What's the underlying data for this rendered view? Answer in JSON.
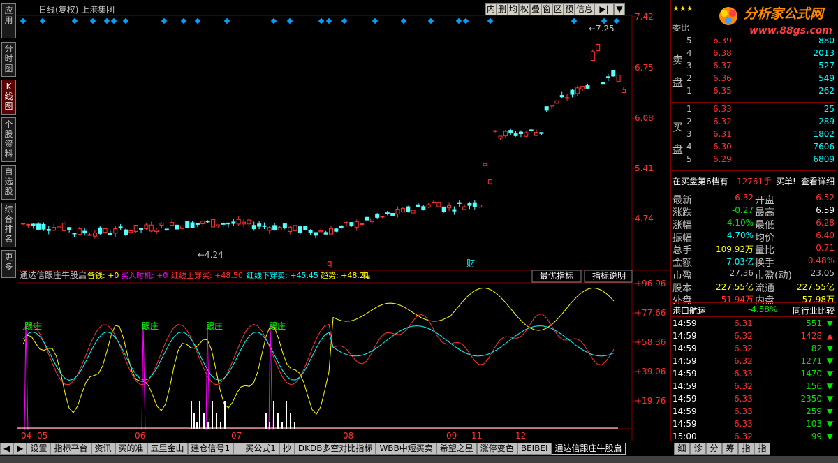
{
  "left_tabs": [
    "应用",
    "分时图",
    "K线图",
    "个股资料",
    "自选股",
    "综合排名",
    "更多"
  ],
  "title": "日线(复权)   上港集团",
  "toolbar": [
    "内",
    "删",
    "均",
    "权",
    "叠",
    "窗",
    "区",
    "预",
    "信息",
    "▶|",
    "▼"
  ],
  "price_axis": [
    "7.42",
    "6.75",
    "6.08",
    "5.41",
    "4.74"
  ],
  "price_annot": {
    "high": "←7.25",
    "low": "←4.24"
  },
  "markers": {
    "q": "q",
    "cai": "财"
  },
  "indicator": {
    "name": "通达信跟庄牛股启",
    "items": [
      {
        "label": "备钱: +0",
        "color": "#ffff00"
      },
      {
        "label": "买入时机: +0",
        "color": "#ff00ff"
      },
      {
        "label": "红线上穿买: +48.50",
        "color": "#ff3232"
      },
      {
        "label": "红线下穿卖: +45.45",
        "color": "#00ffff"
      },
      {
        "label": "趋势: +48.21",
        "color": "#ffff00"
      },
      {
        "label": "耗",
        "color": "#ffff00"
      }
    ],
    "btn1": "最优指标",
    "btn2": "指标说明",
    "axis": [
      "+96.96",
      "+77.66",
      "+58.36",
      "+39.06",
      "+19.76"
    ],
    "genzhuang": "跟庄"
  },
  "date_labels": [
    "04",
    "05",
    "06",
    "07",
    "08",
    "09",
    "11",
    "12"
  ],
  "logo": {
    "text": "分析家公式网",
    "url": "www.88gs.com"
  },
  "order_book": {
    "weibi": "委比",
    "sell": [
      {
        "n": "5",
        "p": "6.39",
        "v": "880"
      },
      {
        "n": "4",
        "p": "6.38",
        "v": "2013"
      },
      {
        "n": "3",
        "p": "6.37",
        "v": "527"
      },
      {
        "n": "2",
        "p": "6.36",
        "v": "549"
      },
      {
        "n": "1",
        "p": "6.35",
        "v": "262"
      }
    ],
    "buy": [
      {
        "n": "1",
        "p": "6.33",
        "v": "25"
      },
      {
        "n": "2",
        "p": "6.32",
        "v": "289"
      },
      {
        "n": "3",
        "p": "6.31",
        "v": "1802"
      },
      {
        "n": "4",
        "p": "6.30",
        "v": "7606"
      },
      {
        "n": "5",
        "p": "6.29",
        "v": "6809"
      }
    ],
    "sell_label": [
      "卖",
      "盘"
    ],
    "buy_label": [
      "买",
      "盘"
    ],
    "sixth": "在买盘第6档有",
    "sixth_v": "12761手",
    "buy_single": "买单!",
    "detail": "查看详细"
  },
  "stats": [
    {
      "l1": "最新",
      "v1": "6.32",
      "c1": "red",
      "l2": "开盘",
      "v2": "6.52",
      "c2": "red"
    },
    {
      "l1": "涨跌",
      "v1": "-0.27",
      "c1": "grn",
      "l2": "最高",
      "v2": "6.59",
      "c2": "wht"
    },
    {
      "l1": "涨幅",
      "v1": "-4.10%",
      "c1": "grn",
      "l2": "最低",
      "v2": "6.28",
      "c2": "red"
    },
    {
      "l1": "振幅",
      "v1": "4.70%",
      "c1": "cyn",
      "l2": "均价",
      "v2": "6.40",
      "c2": "red"
    },
    {
      "l1": "总手",
      "v1": "109.92万",
      "c1": "yel",
      "l2": "量比",
      "v2": "0.71",
      "c2": "red"
    },
    {
      "l1": "金额",
      "v1": "7.03亿",
      "c1": "cyn",
      "l2": "换手",
      "v2": "0.48%",
      "c2": "red"
    },
    {
      "l1": "市盈",
      "v1": "27.36",
      "c1": "gry",
      "l2": "市盈(动)",
      "v2": "23.05",
      "c2": "gry"
    },
    {
      "l1": "股本",
      "v1": "227.55亿",
      "c1": "yel",
      "l2": "流通",
      "v2": "227.55亿",
      "c2": "yel"
    },
    {
      "l1": "外盘",
      "v1": "51.94万",
      "c1": "red",
      "l2": "内盘",
      "v2": "57.98万",
      "c2": "yel"
    }
  ],
  "sector": {
    "name": "港口航运",
    "chg": "-4.58%",
    "cmp": "同行业比较"
  },
  "ticks": [
    {
      "t": "14:59",
      "p": "6.31",
      "v": "551",
      "d": "down"
    },
    {
      "t": "14:59",
      "p": "6.32",
      "v": "1428",
      "d": "up"
    },
    {
      "t": "14:59",
      "p": "6.32",
      "v": "82",
      "d": "down"
    },
    {
      "t": "14:59",
      "p": "6.32",
      "v": "1271",
      "d": "down"
    },
    {
      "t": "14:59",
      "p": "6.33",
      "v": "1470",
      "d": "down"
    },
    {
      "t": "14:59",
      "p": "6.32",
      "v": "156",
      "d": "down"
    },
    {
      "t": "14:59",
      "p": "6.33",
      "v": "2350",
      "d": "down"
    },
    {
      "t": "14:59",
      "p": "6.33",
      "v": "259",
      "d": "down"
    },
    {
      "t": "14:59",
      "p": "6.33",
      "v": "103",
      "d": "down"
    },
    {
      "t": "15:00",
      "p": "6.32",
      "v": "99",
      "d": "down"
    }
  ],
  "bottom_tabs": [
    "设置",
    "指标平台",
    "资讯",
    "买的准",
    "五里金山",
    "建仓信号1",
    "一买公式1",
    "抄",
    "DKDB多空对比指标",
    "WBB中短买卖",
    "希望之星",
    "涨停变色",
    "BEIBEI",
    "通达信跟庄牛股启"
  ],
  "right_tabs": [
    "细",
    "诊",
    "分",
    "筹",
    "指",
    "指"
  ]
}
